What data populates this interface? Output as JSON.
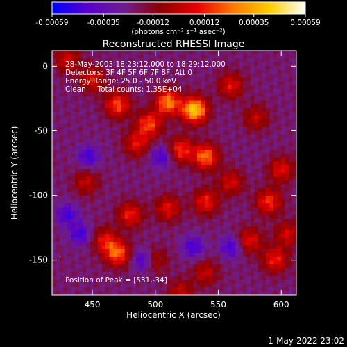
{
  "colorbar": {
    "ticks": [
      "-0.00059",
      "-0.00035",
      "-0.00012",
      "0.00012",
      "0.00035",
      "0.00059"
    ],
    "values": [
      -0.00059,
      -0.00035,
      -0.00012,
      0.00012,
      0.00035,
      0.00059
    ],
    "range": [
      -0.00059,
      0.00059
    ],
    "unit_label": "(photons cm⁻² s⁻¹ asec⁻²)",
    "colors": [
      "#0000ff",
      "#5a00c8",
      "#6e1e8c",
      "#8c0000",
      "#e60000",
      "#ff7800",
      "#ffcc00",
      "#ffffff"
    ]
  },
  "chart_data": {
    "type": "heatmap",
    "title": "Reconstructed RHESSI Image",
    "xlabel": "Heliocentric X (arcsec)",
    "ylabel": "Heliocentric Y (arcsec)",
    "xlim": [
      418,
      612
    ],
    "ylim": [
      -177,
      12
    ],
    "xticks": [
      450,
      500,
      550,
      600
    ],
    "yticks": [
      0,
      -50,
      -100,
      -150
    ],
    "annotations": [
      "28-May-2003 18:23:12.000 to 18:29:12.000",
      "Detectors: 3F 4F 5F 6F 7F 8F, Att 0",
      "Energy Range: 25.0 - 50.0 keV",
      "Clean     Total counts: 1.35E+04"
    ],
    "peak_label": "Position of Peak = [531,-34]",
    "peak": [
      531,
      -34
    ],
    "hot_spots": [
      {
        "x": 531,
        "y": -34,
        "level": 1.0
      },
      {
        "x": 510,
        "y": -28,
        "level": 0.75
      },
      {
        "x": 470,
        "y": -30,
        "level": 0.6
      },
      {
        "x": 495,
        "y": -45,
        "level": 0.6
      },
      {
        "x": 540,
        "y": -70,
        "level": 0.7
      },
      {
        "x": 520,
        "y": -65,
        "level": 0.55
      },
      {
        "x": 485,
        "y": -60,
        "level": 0.45
      },
      {
        "x": 450,
        "y": -10,
        "level": 0.45
      },
      {
        "x": 430,
        "y": 5,
        "level": 0.4
      },
      {
        "x": 560,
        "y": -15,
        "level": 0.45
      },
      {
        "x": 580,
        "y": -40,
        "level": 0.35
      },
      {
        "x": 480,
        "y": -115,
        "level": 0.5
      },
      {
        "x": 510,
        "y": -110,
        "level": 0.45
      },
      {
        "x": 470,
        "y": -145,
        "level": 0.65
      },
      {
        "x": 460,
        "y": -135,
        "level": 0.45
      },
      {
        "x": 540,
        "y": -105,
        "level": 0.5
      },
      {
        "x": 560,
        "y": -90,
        "level": 0.4
      },
      {
        "x": 590,
        "y": -105,
        "level": 0.55
      },
      {
        "x": 600,
        "y": -80,
        "level": 0.45
      },
      {
        "x": 595,
        "y": -150,
        "level": 0.5
      },
      {
        "x": 575,
        "y": -135,
        "level": 0.45
      },
      {
        "x": 540,
        "y": -160,
        "level": 0.35
      },
      {
        "x": 445,
        "y": -90,
        "level": 0.35
      },
      {
        "x": 500,
        "y": -150,
        "level": 0.3
      },
      {
        "x": 605,
        "y": -130,
        "level": 0.4
      },
      {
        "x": 520,
        "y": -175,
        "level": 0.35
      }
    ],
    "cold_spots": [
      {
        "x": 447,
        "y": -70
      },
      {
        "x": 440,
        "y": -130
      },
      {
        "x": 505,
        "y": -70
      },
      {
        "x": 490,
        "y": -150
      },
      {
        "x": 530,
        "y": -140
      },
      {
        "x": 560,
        "y": -140
      },
      {
        "x": 430,
        "y": -115
      }
    ]
  },
  "footer": {
    "timestamp": "1-May-2022 23:02"
  }
}
